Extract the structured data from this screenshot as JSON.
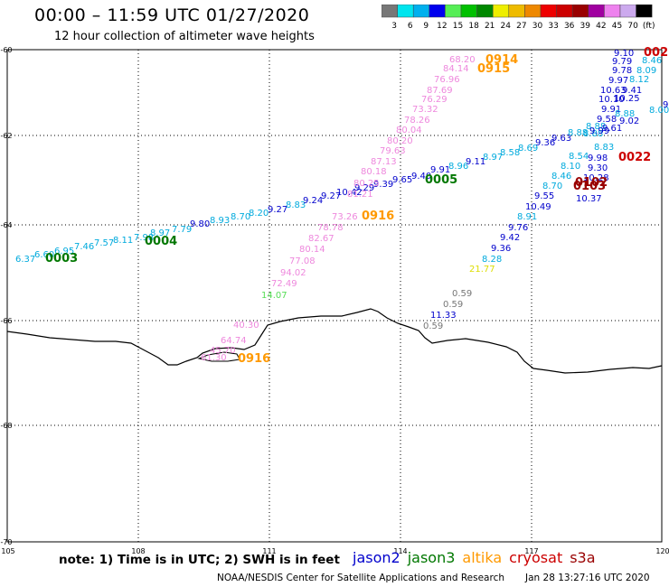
{
  "header": {
    "title": "00:00 – 11:59 UTC 01/27/2020",
    "subtitle": "12 hour collection of altimeter wave heights"
  },
  "colorbar": {
    "labels": [
      "3",
      "6",
      "9",
      "12",
      "15",
      "18",
      "21",
      "24",
      "27",
      "30",
      "33",
      "36",
      "39",
      "42",
      "45",
      "70",
      "(ft)"
    ],
    "colors": [
      "#777777",
      "#00e5ee",
      "#00b0ee",
      "#0000ee",
      "#56ee56",
      "#00c000",
      "#008800",
      "#eeee00",
      "#eebb00",
      "#ee8800",
      "#ee0000",
      "#cc0000",
      "#990000",
      "#a000a0",
      "#ee82ee",
      "#ccaaee",
      "#000000"
    ]
  },
  "axes": {
    "lat_labels": [
      "-60",
      "-62",
      "-64",
      "-66",
      "-68",
      "-70"
    ],
    "lon_labels": [
      "105",
      "108",
      "111",
      "114",
      "117",
      "120"
    ]
  },
  "satellite_colors": {
    "jason2": "#0000cc",
    "jason3": "#007700",
    "altika": "#ff9900",
    "cryosat": "#cc0000",
    "s3a": "#990000",
    "cyan": "#00aadd",
    "pink": "#ee88dd",
    "gray": "#777777",
    "yellow": "#dddd00",
    "lightgreen": "#55dd55"
  },
  "tracks": [
    {
      "id": "0003",
      "color": "jason3",
      "label_color": "jason3",
      "values": [
        {
          "v": "6.37",
          "c": "cyan"
        },
        {
          "v": "6.60",
          "c": "cyan"
        },
        {
          "v": "6.95",
          "c": "cyan"
        },
        {
          "v": "7.46",
          "c": "cyan"
        },
        {
          "v": "7.57",
          "c": "cyan"
        },
        {
          "v": "8.11",
          "c": "cyan"
        }
      ]
    },
    {
      "id": "0004",
      "color": "jason3",
      "label_color": "jason3",
      "values": [
        {
          "v": "7.98",
          "c": "cyan"
        },
        {
          "v": "8.97",
          "c": "cyan"
        },
        {
          "v": "7.79",
          "c": "cyan"
        },
        {
          "v": "9.80",
          "c": "jason2"
        },
        {
          "v": "8.93",
          "c": "cyan"
        },
        {
          "v": "8.70",
          "c": "cyan"
        },
        {
          "v": "8.20",
          "c": "cyan"
        },
        {
          "v": "9.27",
          "c": "jason2"
        },
        {
          "v": "8.83",
          "c": "cyan"
        },
        {
          "v": "9.24",
          "c": "jason2"
        },
        {
          "v": "9.27",
          "c": "jason2"
        },
        {
          "v": "10.42",
          "c": "jason2"
        },
        {
          "v": "9.29",
          "c": "jason2"
        },
        {
          "v": "9.39",
          "c": "jason2"
        },
        {
          "v": "9.65",
          "c": "jason2"
        }
      ]
    },
    {
      "id": "0005",
      "color": "jason3",
      "label_color": "jason3",
      "values": [
        {
          "v": "9.40",
          "c": "jason2"
        },
        {
          "v": "9.91",
          "c": "jason2"
        },
        {
          "v": "8.96",
          "c": "cyan"
        },
        {
          "v": "9.11",
          "c": "jason2"
        },
        {
          "v": "8.97",
          "c": "cyan"
        },
        {
          "v": "8.58",
          "c": "cyan"
        },
        {
          "v": "8.69",
          "c": "cyan"
        },
        {
          "v": "9.36",
          "c": "jason2"
        },
        {
          "v": "9.63",
          "c": "jason2"
        },
        {
          "v": "8.88",
          "c": "cyan"
        },
        {
          "v": "8.88",
          "c": "cyan"
        }
      ]
    },
    {
      "id": "0914",
      "color": "altika",
      "label_color": "altika",
      "values": [
        {
          "v": "68.20",
          "c": "pink"
        },
        {
          "v": "84.14",
          "c": "pink"
        },
        {
          "v": "76.96",
          "c": "pink"
        },
        {
          "v": "87.69",
          "c": "pink"
        },
        {
          "v": "76.29",
          "c": "pink"
        },
        {
          "v": "73.32",
          "c": "pink"
        },
        {
          "v": "78.26",
          "c": "pink"
        },
        {
          "v": "80.04",
          "c": "pink"
        },
        {
          "v": "80.20",
          "c": "pink"
        },
        {
          "v": "79.63",
          "c": "pink"
        },
        {
          "v": "87.13",
          "c": "pink"
        },
        {
          "v": "80.18",
          "c": "pink"
        },
        {
          "v": "80.25",
          "c": "pink"
        },
        {
          "v": "81.21",
          "c": "pink"
        },
        {
          "v": "73.26",
          "c": "pink"
        },
        {
          "v": "78.78",
          "c": "pink"
        },
        {
          "v": "82.67",
          "c": "pink"
        },
        {
          "v": "80.14",
          "c": "pink"
        },
        {
          "v": "77.08",
          "c": "pink"
        },
        {
          "v": "94.02",
          "c": "pink"
        },
        {
          "v": "72.49",
          "c": "pink"
        },
        {
          "v": "14.07",
          "c": "lightgreen"
        }
      ]
    },
    {
      "id": "0915",
      "color": "altika",
      "label_color": "altika",
      "values": []
    },
    {
      "id": "0916",
      "color": "altika",
      "label_color": "altika",
      "values": [
        {
          "v": "40.30",
          "c": "pink"
        },
        {
          "v": "64.74",
          "c": "pink"
        },
        {
          "v": "45.70",
          "c": "pink"
        },
        {
          "v": "61.30",
          "c": "pink"
        }
      ]
    },
    {
      "id": "0022",
      "color": "cryosat",
      "label_color": "cryosat",
      "values": []
    },
    {
      "id": "0103",
      "color": "s3a",
      "label_color": "s3a",
      "values": []
    },
    {
      "id": "0102",
      "color": "s3a",
      "label_color": "s3a",
      "values": []
    }
  ],
  "east_track_a": [
    {
      "v": "9.10",
      "c": "jason2"
    },
    {
      "v": "9.79",
      "c": "jason2"
    },
    {
      "v": "9.78",
      "c": "jason2"
    },
    {
      "v": "9.97",
      "c": "jason2"
    },
    {
      "v": "10.63",
      "c": "jason2"
    },
    {
      "v": "10.10",
      "c": "jason2"
    },
    {
      "v": "10.25",
      "c": "jason2"
    },
    {
      "v": "9.91",
      "c": "jason2"
    },
    {
      "v": "9.58",
      "c": "jason2"
    },
    {
      "v": "9.61",
      "c": "jason2"
    },
    {
      "v": "8.88",
      "c": "cyan"
    },
    {
      "v": "8.83",
      "c": "cyan"
    },
    {
      "v": "8.54",
      "c": "cyan"
    },
    {
      "v": "8.10",
      "c": "cyan"
    },
    {
      "v": "8.46",
      "c": "cyan"
    },
    {
      "v": "8.70",
      "c": "cyan"
    },
    {
      "v": "9.55",
      "c": "jason2"
    },
    {
      "v": "10.49",
      "c": "jason2"
    },
    {
      "v": "8.91",
      "c": "cyan"
    },
    {
      "v": "9.76",
      "c": "jason2"
    },
    {
      "v": "9.42",
      "c": "jason2"
    },
    {
      "v": "9.36",
      "c": "jason2"
    },
    {
      "v": "8.28",
      "c": "cyan"
    },
    {
      "v": "21.77",
      "c": "yellow"
    }
  ],
  "east_track_b": [
    {
      "v": "8.46",
      "c": "cyan"
    },
    {
      "v": "8.09",
      "c": "cyan"
    },
    {
      "v": "8.12",
      "c": "cyan"
    },
    {
      "v": "9.41",
      "c": "jason2"
    },
    {
      "v": "8.88",
      "c": "cyan"
    },
    {
      "v": "9.02",
      "c": "jason2"
    },
    {
      "v": "9.99",
      "c": "jason2"
    },
    {
      "v": "9.98",
      "c": "jason2"
    },
    {
      "v": "9.30",
      "c": "jason2"
    },
    {
      "v": "10.28",
      "c": "jason2"
    },
    {
      "v": "10.37",
      "c": "jason2"
    },
    {
      "v": "8.00",
      "c": "cyan"
    },
    {
      "v": "9.24",
      "c": "jason2"
    }
  ],
  "gray_track": [
    {
      "v": "0.59",
      "c": "gray"
    },
    {
      "v": "0.59",
      "c": "gray"
    },
    {
      "v": "11.33",
      "c": "jason2"
    },
    {
      "v": "0.59",
      "c": "gray"
    }
  ],
  "footer": {
    "note": "note:  1) Time is in UTC;  2) SWH is in feet",
    "legend": [
      {
        "name": "jason2",
        "color": "#0000cc"
      },
      {
        "name": "jason3",
        "color": "#007700"
      },
      {
        "name": "altika",
        "color": "#ff9900"
      },
      {
        "name": "cryosat",
        "color": "#cc0000"
      },
      {
        "name": "s3a",
        "color": "#990000"
      }
    ],
    "credit": "NOAA/NESDIS Center for Satellite Applications and Research",
    "timestamp": "Jan 28 13:27:16 UTC 2020"
  }
}
